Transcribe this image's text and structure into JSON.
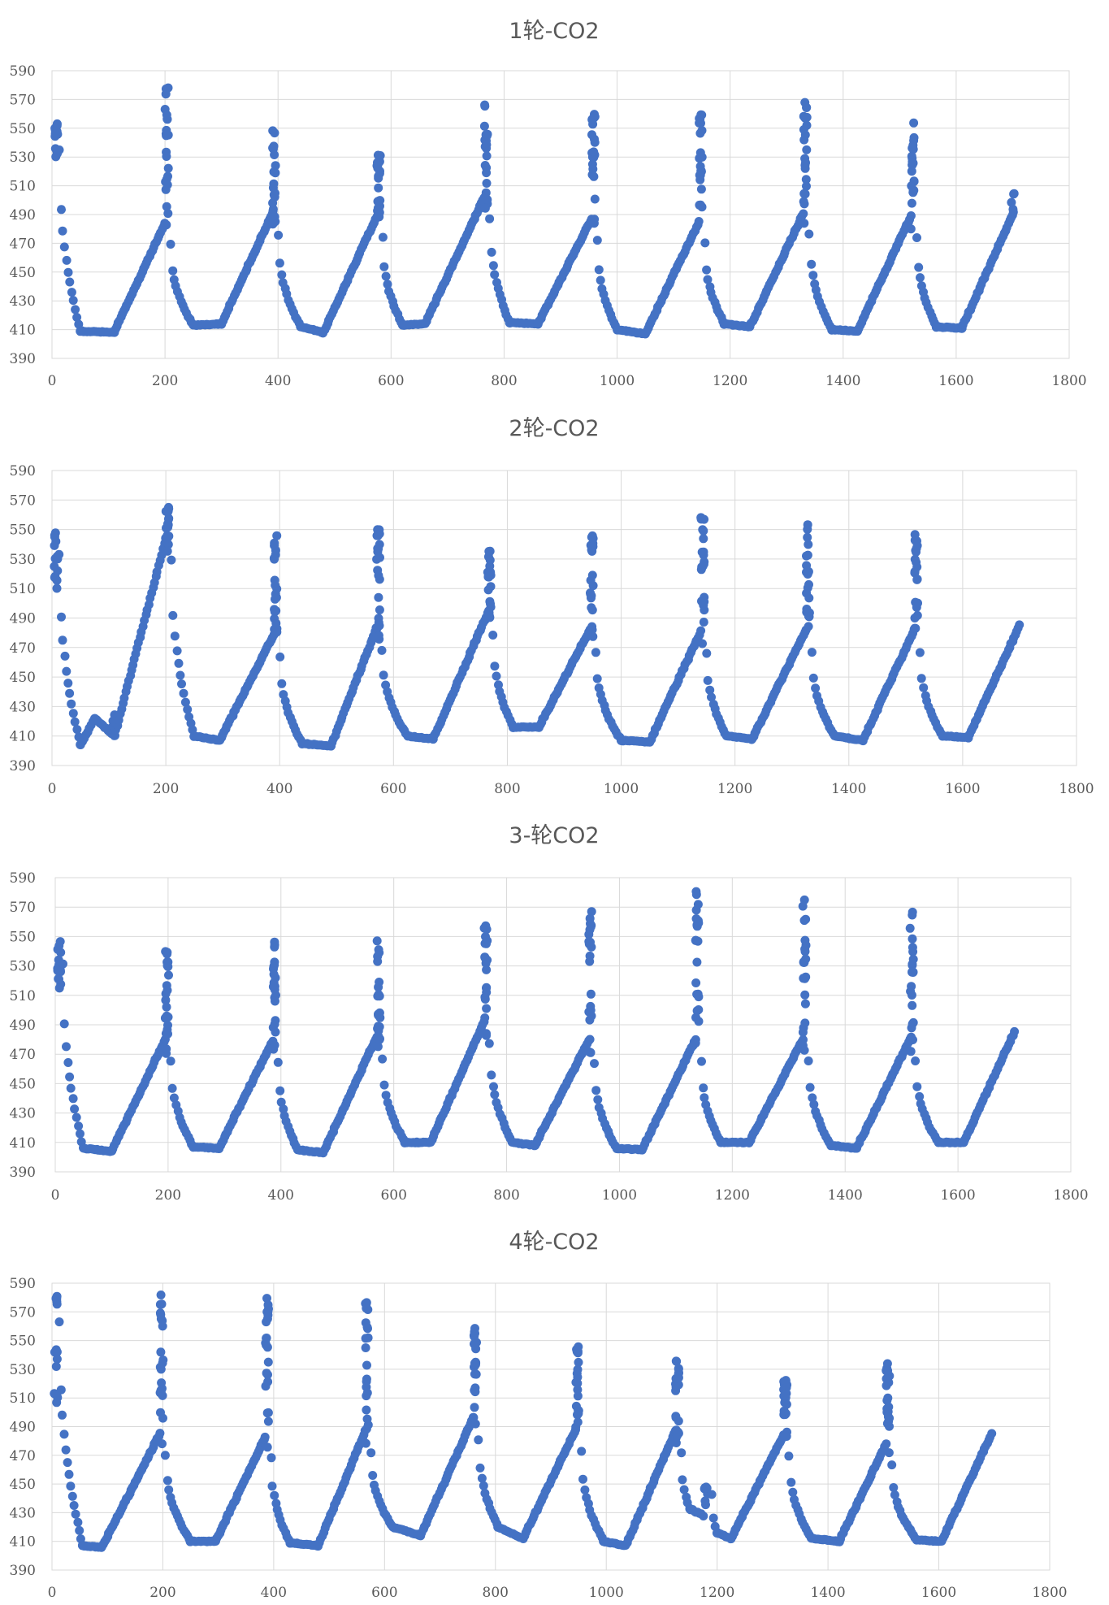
{
  "colors": {
    "marker": "#4472c4",
    "grid": "#d9d9d9",
    "text": "#595959"
  },
  "chart_data": [
    {
      "type": "scatter",
      "title": "1轮-CO2",
      "xlim": [
        0,
        1800
      ],
      "ylim": [
        390,
        590
      ],
      "xticks": [
        0,
        200,
        400,
        600,
        800,
        1000,
        1200,
        1400,
        1600,
        1800
      ],
      "yticks": [
        390,
        410,
        430,
        450,
        470,
        490,
        510,
        530,
        550,
        570,
        590
      ],
      "grid": "vertical and horizontal",
      "legend": "none",
      "series": [
        {
          "start": [
            0,
            525
          ],
          "cycles": [
            {
              "peak_x": 5,
              "peak": 555,
              "base_x": 50,
              "base": 409,
              "end_x": 110,
              "end": 408,
              "apex_x": 200,
              "apex": 484,
              "spike": 584
            },
            {
              "base_x": 250,
              "base": 413,
              "end_x": 300,
              "end": 414,
              "apex_x": 390,
              "apex": 491,
              "spike": 558
            },
            {
              "base_x": 440,
              "base": 412,
              "end_x": 480,
              "end": 408,
              "apex_x": 575,
              "apex": 489,
              "spike": 536
            },
            {
              "base_x": 620,
              "base": 413,
              "end_x": 660,
              "end": 414,
              "apex_x": 765,
              "apex": 502,
              "spike": 573
            },
            {
              "base_x": 810,
              "base": 415,
              "end_x": 860,
              "end": 414,
              "apex_x": 955,
              "apex": 487,
              "spike": 560
            },
            {
              "base_x": 1000,
              "base": 410,
              "end_x": 1050,
              "end": 407,
              "apex_x": 1145,
              "apex": 485,
              "spike": 562
            },
            {
              "base_x": 1190,
              "base": 414,
              "end_x": 1235,
              "end": 412,
              "apex_x": 1330,
              "apex": 491,
              "spike": 569
            },
            {
              "base_x": 1380,
              "base": 410,
              "end_x": 1425,
              "end": 409,
              "apex_x": 1520,
              "apex": 489,
              "spike": 554
            },
            {
              "base_x": 1565,
              "base": 412,
              "end_x": 1610,
              "end": 411,
              "apex_x": 1700,
              "apex": 490,
              "spike": 505,
              "final": true
            }
          ]
        }
      ]
    },
    {
      "type": "scatter",
      "title": "2轮-CO2",
      "xlim": [
        0,
        1800
      ],
      "ylim": [
        390,
        590
      ],
      "xticks": [
        0,
        200,
        400,
        600,
        800,
        1000,
        1200,
        1400,
        1600,
        1800
      ],
      "yticks": [
        390,
        410,
        430,
        450,
        470,
        490,
        510,
        530,
        550,
        570,
        590
      ],
      "grid": "vertical and horizontal",
      "legend": "none",
      "series": [
        {
          "start": [
            0,
            505
          ],
          "cycles": [
            {
              "peak_x": 5,
              "peak": 553,
              "base_x": 50,
              "base": 404,
              "end_x": 110,
              "end": 410,
              "apex_x": 200,
              "apex": 544,
              "spike": 567,
              "bump_x": 75,
              "bump": 422
            },
            {
              "base_x": 250,
              "base": 410,
              "end_x": 295,
              "end": 407,
              "apex_x": 390,
              "apex": 479,
              "spike": 547
            },
            {
              "base_x": 440,
              "base": 405,
              "end_x": 490,
              "end": 403,
              "apex_x": 570,
              "apex": 483,
              "spike": 553
            },
            {
              "base_x": 625,
              "base": 410,
              "end_x": 670,
              "end": 408,
              "apex_x": 765,
              "apex": 493,
              "spike": 544
            },
            {
              "base_x": 810,
              "base": 416,
              "end_x": 855,
              "end": 416,
              "apex_x": 945,
              "apex": 482,
              "spike": 547
            },
            {
              "base_x": 1000,
              "base": 407,
              "end_x": 1050,
              "end": 406,
              "apex_x": 1140,
              "apex": 481,
              "spike": 560
            },
            {
              "base_x": 1185,
              "base": 410,
              "end_x": 1230,
              "end": 408,
              "apex_x": 1325,
              "apex": 482,
              "spike": 555
            },
            {
              "base_x": 1375,
              "base": 410,
              "end_x": 1425,
              "end": 407,
              "apex_x": 1515,
              "apex": 482,
              "spike": 548
            },
            {
              "base_x": 1565,
              "base": 410,
              "end_x": 1610,
              "end": 409,
              "apex_x": 1700,
              "apex": 485,
              "spike": 485,
              "final": true
            }
          ]
        }
      ]
    },
    {
      "type": "scatter",
      "title": "3-轮CO2",
      "xlim": [
        0,
        1800
      ],
      "ylim": [
        390,
        590
      ],
      "xticks": [
        0,
        200,
        400,
        600,
        800,
        1000,
        1200,
        1400,
        1600,
        1800
      ],
      "yticks": [
        390,
        410,
        430,
        450,
        470,
        490,
        510,
        530,
        550,
        570,
        590
      ],
      "grid": "vertical and horizontal",
      "legend": "none",
      "series": [
        {
          "start": [
            0,
            510
          ],
          "cycles": [
            {
              "peak_x": 5,
              "peak": 551,
              "base_x": 50,
              "base": 406,
              "end_x": 100,
              "end": 404,
              "apex_x": 195,
              "apex": 480,
              "spike": 540
            },
            {
              "base_x": 245,
              "base": 407,
              "end_x": 290,
              "end": 406,
              "apex_x": 385,
              "apex": 479,
              "spike": 551
            },
            {
              "base_x": 430,
              "base": 405,
              "end_x": 475,
              "end": 403,
              "apex_x": 570,
              "apex": 482,
              "spike": 554
            },
            {
              "base_x": 620,
              "base": 410,
              "end_x": 665,
              "end": 410,
              "apex_x": 760,
              "apex": 492,
              "spike": 560
            },
            {
              "base_x": 810,
              "base": 410,
              "end_x": 850,
              "end": 408,
              "apex_x": 945,
              "apex": 479,
              "spike": 567
            },
            {
              "base_x": 995,
              "base": 406,
              "end_x": 1040,
              "end": 405,
              "apex_x": 1135,
              "apex": 480,
              "spike": 585
            },
            {
              "base_x": 1180,
              "base": 410,
              "end_x": 1230,
              "end": 410,
              "apex_x": 1325,
              "apex": 480,
              "spike": 575
            },
            {
              "base_x": 1375,
              "base": 408,
              "end_x": 1420,
              "end": 406,
              "apex_x": 1515,
              "apex": 480,
              "spike": 575
            },
            {
              "base_x": 1565,
              "base": 410,
              "end_x": 1610,
              "end": 410,
              "apex_x": 1700,
              "apex": 485,
              "spike": 485,
              "final": true
            }
          ]
        }
      ]
    },
    {
      "type": "scatter",
      "title": "4轮-CO2",
      "xlim": [
        0,
        1800
      ],
      "ylim": [
        390,
        590
      ],
      "xticks": [
        0,
        200,
        400,
        600,
        800,
        1000,
        1200,
        1400,
        1600,
        1800
      ],
      "yticks": [
        390,
        410,
        430,
        450,
        470,
        490,
        510,
        530,
        550,
        570,
        590
      ],
      "grid": "vertical and horizontal",
      "legend": "none",
      "series": [
        {
          "start": [
            0,
            505
          ],
          "cycles": [
            {
              "peak_x": 5,
              "peak": 583,
              "base_x": 55,
              "base": 407,
              "end_x": 90,
              "end": 406,
              "apex_x": 195,
              "apex": 485,
              "spike": 588
            },
            {
              "base_x": 250,
              "base": 410,
              "end_x": 295,
              "end": 410,
              "apex_x": 385,
              "apex": 483,
              "spike": 585
            },
            {
              "base_x": 430,
              "base": 409,
              "end_x": 480,
              "end": 407,
              "apex_x": 565,
              "apex": 487,
              "spike": 578
            },
            {
              "base_x": 615,
              "base": 420,
              "end_x": 665,
              "end": 414,
              "apex_x": 760,
              "apex": 496,
              "spike": 559
            },
            {
              "base_x": 805,
              "base": 420,
              "end_x": 850,
              "end": 412,
              "apex_x": 945,
              "apex": 488,
              "spike": 547
            },
            {
              "base_x": 995,
              "base": 410,
              "end_x": 1035,
              "end": 407,
              "apex_x": 1125,
              "apex": 487,
              "spike": 539,
              "bump_x": 1190,
              "bump": 448
            },
            {
              "base_x": 1200,
              "base": 416,
              "end_x": 1225,
              "end": 412,
              "apex_x": 1320,
              "apex": 484,
              "spike": 525
            },
            {
              "base_x": 1370,
              "base": 412,
              "end_x": 1420,
              "end": 410,
              "apex_x": 1505,
              "apex": 478,
              "spike": 535
            },
            {
              "base_x": 1560,
              "base": 411,
              "end_x": 1605,
              "end": 410,
              "apex_x": 1695,
              "apex": 485,
              "spike": 485,
              "final": true
            }
          ]
        }
      ]
    }
  ]
}
